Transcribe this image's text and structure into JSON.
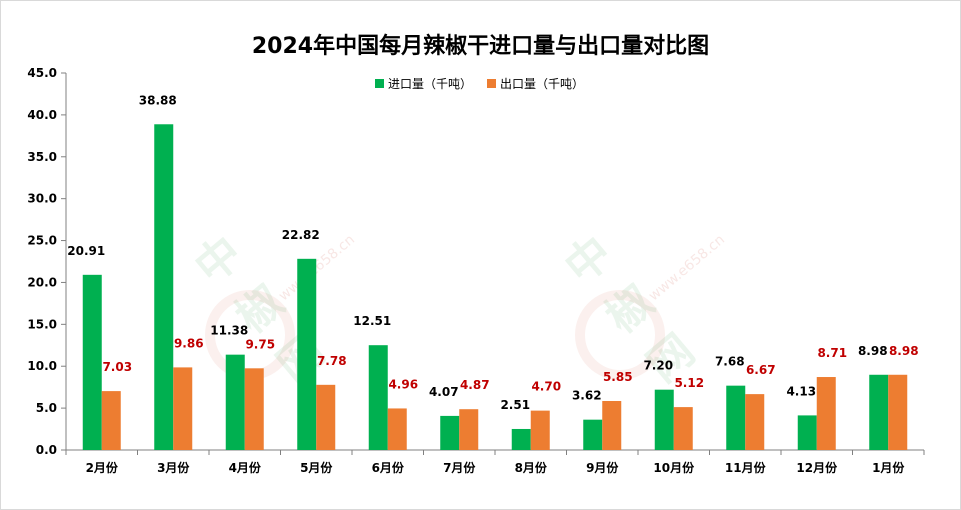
{
  "chart_data": {
    "type": "bar",
    "title": "2024年中国每月辣椒干进口量与出口量对比图",
    "categories": [
      "2月份",
      "3月份",
      "4月份",
      "5月份",
      "6月份",
      "7月份",
      "8月份",
      "9月份",
      "10月份",
      "11月份",
      "12月份",
      "1月份"
    ],
    "series": [
      {
        "name": "进口量（千吨）",
        "color": "#00b050",
        "label_color": "#000000",
        "values": [
          20.91,
          38.88,
          11.38,
          22.82,
          12.51,
          4.07,
          2.51,
          3.62,
          7.2,
          7.68,
          4.13,
          8.98
        ],
        "labels": [
          "20.91",
          "38.88",
          "11.38",
          "22.82",
          "12.51",
          "4.07",
          "2.51",
          "3.62",
          "7.20",
          "7.68",
          "4.13",
          "8.98"
        ]
      },
      {
        "name": "出口量（千吨）",
        "color": "#ed7d31",
        "label_color": "#c00000",
        "values": [
          7.03,
          9.86,
          9.75,
          7.78,
          4.96,
          4.87,
          4.7,
          5.85,
          5.12,
          6.67,
          8.71,
          8.98
        ],
        "labels": [
          "7.03",
          "9.86",
          "9.75",
          "7.78",
          "4.96",
          "4.87",
          "4.70",
          "5.85",
          "5.12",
          "6.67",
          "8.71",
          "8.98"
        ]
      }
    ],
    "ylim": [
      0,
      45
    ],
    "yticks": [
      "0.0",
      "5.0",
      "10.0",
      "15.0",
      "20.0",
      "25.0",
      "30.0",
      "35.0",
      "40.0",
      "45.0"
    ],
    "xlabel": "",
    "ylabel": "",
    "grid": false,
    "legend_position": "top-center"
  },
  "watermark": {
    "brand": "中椒网",
    "url": "www.e658.cn"
  }
}
